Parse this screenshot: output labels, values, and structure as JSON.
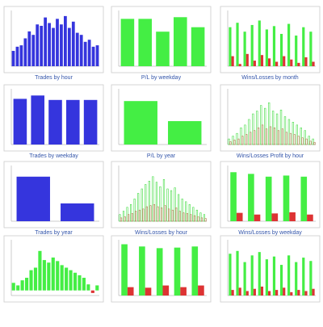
{
  "chart_data": [
    {
      "type": "bar",
      "title": "Trades by hour",
      "color": "#3535dd",
      "ylim": [
        0,
        80
      ],
      "values": [
        22,
        28,
        30,
        40,
        50,
        45,
        60,
        58,
        70,
        62,
        55,
        68,
        60,
        72,
        55,
        64,
        48,
        45,
        35,
        38,
        28,
        30
      ]
    },
    {
      "type": "bar",
      "title": "P/L by weekday",
      "color": "#44ee44",
      "ylim": [
        0,
        100
      ],
      "values": [
        85,
        85,
        62,
        88,
        70
      ]
    },
    {
      "type": "grouped_bar",
      "title": "Wins/Losses by month",
      "ylim": [
        0,
        100
      ],
      "series": [
        {
          "color": "#44ee44",
          "values": [
            70,
            78,
            62,
            74,
            82,
            66,
            72,
            58,
            76,
            55,
            70,
            62
          ]
        },
        {
          "color": "#dd3333",
          "values": [
            18,
            4,
            22,
            10,
            20,
            14,
            8,
            18,
            12,
            6,
            16,
            8
          ]
        }
      ]
    },
    {
      "type": "bar",
      "title": "Trades by weekday",
      "color": "#3535dd",
      "ylim": [
        0,
        100
      ],
      "values": [
        82,
        88,
        80,
        80,
        80
      ]
    },
    {
      "type": "bar",
      "title": "P/L by year",
      "color": "#44ee44",
      "ylim": [
        0,
        100
      ],
      "values": [
        78,
        42
      ]
    },
    {
      "type": "grouped_bar",
      "title": "Wins/Losses Profit by hour",
      "ylim": [
        0,
        100
      ],
      "bar_style": "outline",
      "series": [
        {
          "color": "#44dd44",
          "values": [
            10,
            15,
            20,
            30,
            35,
            45,
            55,
            60,
            70,
            65,
            75,
            60,
            55,
            62,
            50,
            45,
            40,
            35,
            30,
            25,
            15,
            10
          ]
        },
        {
          "color": "#aa7744",
          "values": [
            5,
            8,
            10,
            15,
            18,
            22,
            25,
            30,
            35,
            28,
            32,
            30,
            25,
            28,
            22,
            20,
            18,
            15,
            12,
            10,
            6,
            4
          ]
        }
      ]
    },
    {
      "type": "bar",
      "title": "Trades by year",
      "color": "#3535dd",
      "ylim": [
        0,
        100
      ],
      "values": [
        80,
        32
      ]
    },
    {
      "type": "grouped_bar",
      "title": "Wins/Losses by hour",
      "ylim": [
        0,
        100
      ],
      "bar_style": "outline",
      "series": [
        {
          "color": "#44dd44",
          "values": [
            12,
            18,
            25,
            30,
            40,
            50,
            58,
            66,
            72,
            80,
            70,
            62,
            75,
            58,
            55,
            60,
            48,
            40,
            35,
            30,
            25,
            20,
            15,
            12
          ]
        },
        {
          "color": "#aa7744",
          "values": [
            6,
            8,
            12,
            14,
            18,
            20,
            22,
            26,
            28,
            30,
            26,
            24,
            28,
            22,
            20,
            24,
            18,
            15,
            14,
            12,
            10,
            8,
            6,
            5
          ]
        }
      ]
    },
    {
      "type": "grouped_bar",
      "title": "Wins/Losses by weekday",
      "ylim": [
        0,
        100
      ],
      "series": [
        {
          "color": "#44ee44",
          "values": [
            88,
            85,
            80,
            82,
            80
          ]
        },
        {
          "color": "#dd3333",
          "values": [
            15,
            12,
            14,
            16,
            12
          ]
        }
      ]
    },
    {
      "type": "bar",
      "color": "#44ee44",
      "negative_color": "#dd3333",
      "ylim": [
        -10,
        100
      ],
      "values": [
        15,
        10,
        20,
        25,
        40,
        45,
        78,
        60,
        55,
        65,
        58,
        50,
        45,
        40,
        35,
        30,
        25,
        12,
        -5,
        10
      ]
    },
    {
      "type": "grouped_bar",
      "ylim": [
        0,
        100
      ],
      "series": [
        {
          "color": "#44ee44",
          "values": [
            92,
            88,
            85,
            86,
            88
          ]
        },
        {
          "color": "#dd3333",
          "values": [
            15,
            14,
            18,
            15,
            18
          ]
        }
      ]
    },
    {
      "type": "grouped_bar",
      "ylim": [
        0,
        100
      ],
      "series": [
        {
          "color": "#44ee44",
          "values": [
            75,
            80,
            60,
            72,
            78,
            65,
            70,
            55,
            72,
            60,
            68,
            62
          ]
        },
        {
          "color": "#dd3333",
          "values": [
            10,
            14,
            8,
            12,
            16,
            8,
            10,
            14,
            6,
            10,
            8,
            12
          ]
        }
      ]
    }
  ]
}
